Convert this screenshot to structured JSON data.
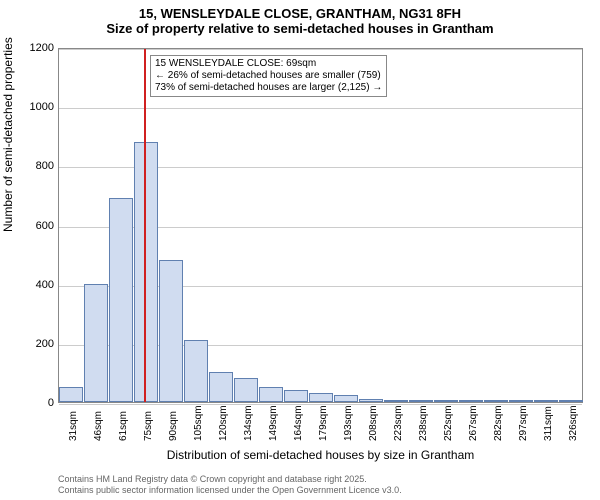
{
  "title": {
    "line1": "15, WENSLEYDALE CLOSE, GRANTHAM, NG31 8FH",
    "line2": "Size of property relative to semi-detached houses in Grantham"
  },
  "chart": {
    "type": "histogram",
    "ylim": [
      0,
      1200
    ],
    "ytick_step": 200,
    "yticks": [
      0,
      200,
      400,
      600,
      800,
      1000,
      1200
    ],
    "ylabel": "Number of semi-detached properties",
    "xlabel": "Distribution of semi-detached houses by size in Grantham",
    "categories": [
      "31sqm",
      "46sqm",
      "61sqm",
      "75sqm",
      "90sqm",
      "105sqm",
      "120sqm",
      "134sqm",
      "149sqm",
      "164sqm",
      "179sqm",
      "193sqm",
      "208sqm",
      "223sqm",
      "238sqm",
      "252sqm",
      "267sqm",
      "282sqm",
      "297sqm",
      "311sqm",
      "326sqm"
    ],
    "values": [
      50,
      400,
      690,
      880,
      480,
      210,
      100,
      80,
      50,
      40,
      30,
      25,
      10,
      8,
      6,
      5,
      4,
      3,
      2,
      2,
      1
    ],
    "bar_fill": "#d0dcf0",
    "bar_border": "#6080b0",
    "grid_color": "#cccccc",
    "background": "#ffffff",
    "marker": {
      "color": "#d02020",
      "position_index": 2.9,
      "annotation": {
        "line1": "15 WENSLEYDALE CLOSE: 69sqm",
        "line2": "← 26% of semi-detached houses are smaller (759)",
        "line3": "73% of semi-detached houses are larger (2,125) →"
      }
    }
  },
  "footer": {
    "line1": "Contains HM Land Registry data © Crown copyright and database right 2025.",
    "line2": "Contains public sector information licensed under the Open Government Licence v3.0."
  }
}
